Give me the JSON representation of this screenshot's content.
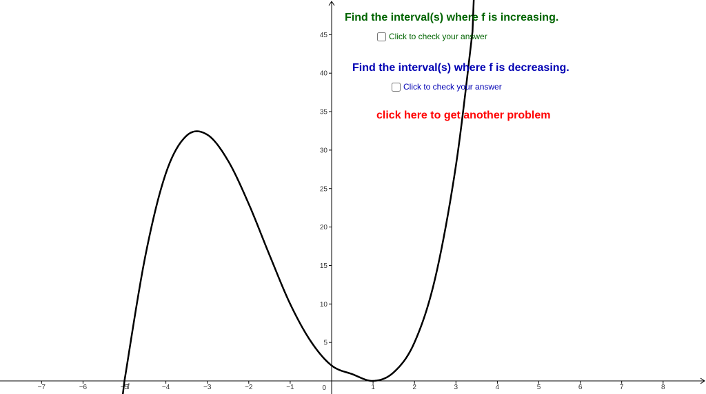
{
  "prompts": {
    "increasing_title": "Find the interval(s) where f is increasing.",
    "increasing_check_label": "Click to check your answer",
    "increasing_checked": false,
    "decreasing_title": "Find the interval(s) where f is decreasing.",
    "decreasing_check_label": "Click to check your answer",
    "decreasing_checked": false,
    "new_problem_link": "click here to get another problem"
  },
  "colors": {
    "increasing": "#006400",
    "decreasing": "#0000b3",
    "new_problem": "#ff0000",
    "curve": "#000000",
    "axis": "#000000"
  },
  "function_label": "f",
  "chart_data": {
    "type": "line",
    "xlim": [
      -8,
      9
    ],
    "ylim": [
      0,
      49
    ],
    "x_ticks": [
      -7,
      -6,
      -5,
      -4,
      -3,
      -2,
      -1,
      1,
      2,
      3,
      4,
      5,
      6,
      7,
      8
    ],
    "y_ticks": [
      5,
      10,
      15,
      20,
      25,
      30,
      35,
      40,
      45
    ],
    "origin_label": "0",
    "grid": false,
    "series": [
      {
        "name": "f",
        "x": [
          -5,
          -4.5,
          -4,
          -3.5,
          -3,
          -2.5,
          -2,
          -1.5,
          -1,
          -0.5,
          0,
          0.5,
          1,
          1.5,
          2,
          2.5,
          3,
          3.4
        ],
        "y": [
          0,
          16.125,
          27,
          31.875,
          32,
          28.625,
          23,
          16.375,
          10,
          5.125,
          2,
          0.875,
          0,
          1.125,
          5,
          13.375,
          28,
          45.4
        ]
      }
    ]
  }
}
